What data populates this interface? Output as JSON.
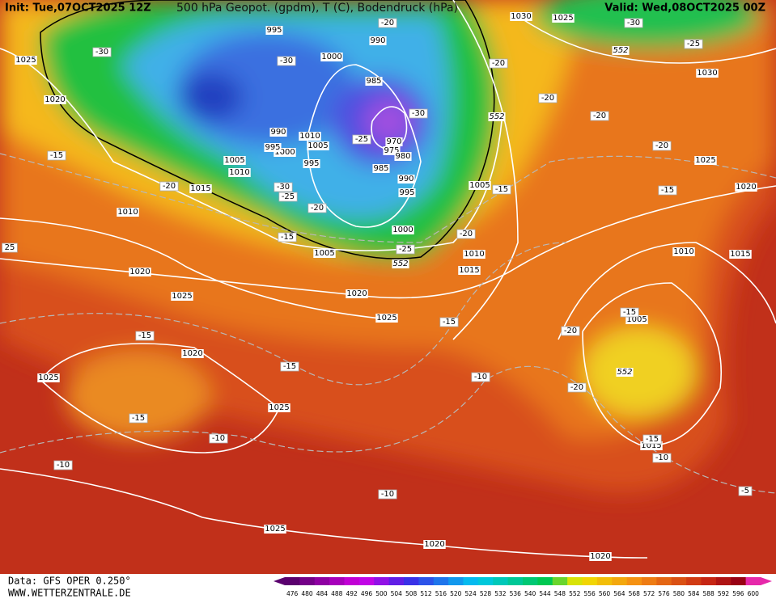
{
  "header": {
    "init": "Init: Tue,07OCT2025 12Z",
    "title": "500 hPa Geopot. (gpdm), T (C), Bodendruck (hPa)",
    "valid": "Valid: Wed,08OCT2025 00Z"
  },
  "footer": {
    "data_source": "Data: GFS OPER 0.250°",
    "website": "WWW.WETTERZENTRALE.DE"
  },
  "colorbar": {
    "labels": [
      476,
      480,
      484,
      488,
      492,
      496,
      500,
      504,
      508,
      512,
      516,
      520,
      524,
      528,
      532,
      536,
      540,
      544,
      548,
      552,
      556,
      560,
      564,
      568,
      572,
      576,
      580,
      584,
      588,
      592,
      596,
      600
    ]
  },
  "pressure_labels": [
    "995",
    "990",
    "1000",
    "985",
    "970",
    "975",
    "980",
    "985",
    "990",
    "995",
    "1000",
    "1005",
    "1010",
    "1005",
    "1000",
    "995",
    "990",
    "995",
    "1005",
    "1010",
    "1015",
    "1010",
    "1020",
    "1025",
    "1020",
    "1025",
    "1020",
    "1025",
    "1025",
    "1025",
    "1020",
    "1020",
    "1015",
    "1005",
    "1010",
    "1015",
    "1020",
    "1025",
    "1030",
    "1025",
    "1020",
    "1005",
    "1010",
    "1015",
    "1030",
    "1025",
    "552",
    "552",
    "552",
    "552"
  ],
  "temperature_labels": [
    "-30",
    "-30",
    "-30",
    "-25",
    "-30",
    "-25",
    "-20",
    "-15",
    "-20",
    "-15",
    "-25",
    "-20",
    "-15",
    "-20",
    "-20",
    "-20",
    "-20",
    "-20",
    "-15",
    "-25",
    "-30",
    "-15",
    "-15",
    "-15",
    "-10",
    "-10",
    "-15",
    "-10",
    "-20",
    "-15",
    "-20",
    "-15",
    "-10",
    "-10",
    "-5",
    "25"
  ]
}
